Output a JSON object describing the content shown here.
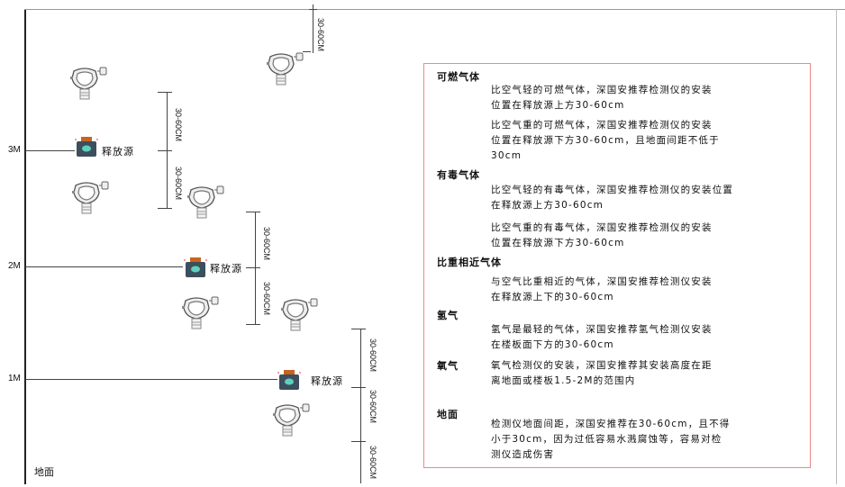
{
  "levels": {
    "l3": "3M",
    "l2": "2M",
    "l1": "1M",
    "ground": "地面"
  },
  "source_label": "释放源",
  "dimension_label": "30-60CM",
  "colors": {
    "border": "#e88888",
    "source_body": "#3d4e5c",
    "source_face": "#5ed0c0",
    "source_cap": "#c8641e"
  },
  "icons": {
    "detector": "gas-detector-icon",
    "source": "release-source-icon"
  },
  "panel": {
    "sections": [
      {
        "title": "可燃气体",
        "paras": [
          [
            "比空气轻的可燃气体，深国安推荐检测仪的安装",
            "位置在释放源上方30-60cm"
          ],
          [
            "比空气重的可燃气体，深国安推荐检测仪的安装",
            "位置在释放源下方30-60cm，且地面间距不低于",
            "30cm"
          ]
        ]
      },
      {
        "title": "有毒气体",
        "paras": [
          [
            "比空气轻的有毒气体，深国安推荐检测仪的安装位置",
            "在释放源上方30-60cm"
          ],
          [
            "比空气重的有毒气体，深国安推荐检测仪的安装",
            "位置在释放源下方30-60cm"
          ]
        ]
      },
      {
        "title": "比重相近气体",
        "paras": [
          [
            "与空气比重相近的气体，深国安推荐检测仪安装",
            "在释放源上下的30-60cm"
          ]
        ]
      },
      {
        "title": "氢气",
        "paras": [
          [
            "氢气是最轻的气体，深国安推荐氢气检测仪安装",
            "在楼板面下方的30-60cm"
          ]
        ]
      },
      {
        "title": "氧气",
        "paras": [
          [
            "氧气检测仪的安装，深国安推荐其安装高度在距",
            "离地面或楼板1.5-2M的范围内"
          ]
        ]
      },
      {
        "title": "地面",
        "paras": [
          [
            "检测仪地面间距，深国安推荐在30-60cm，且不得",
            "小于30cm，因为过低容易水溅腐蚀等，容易对检",
            "测仪造成伤害"
          ]
        ]
      }
    ]
  }
}
